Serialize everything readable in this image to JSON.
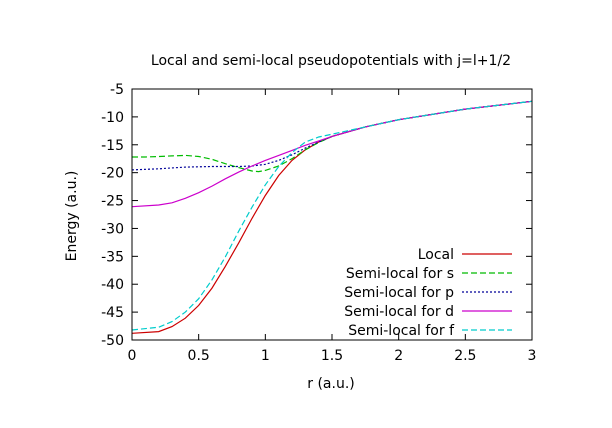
{
  "chart_data": {
    "type": "line",
    "title": "Local and semi-local pseudopotentials with j=l+1/2",
    "xlabel": "r (a.u.)",
    "ylabel": "Energy (a.u.)",
    "xlim": [
      0,
      3
    ],
    "ylim": [
      -50,
      -5
    ],
    "x_ticks": [
      0,
      0.5,
      1,
      1.5,
      2,
      2.5,
      3
    ],
    "x_tick_labels": [
      "0",
      "0.5",
      "1",
      "1.5",
      "2",
      "2.5",
      "3"
    ],
    "y_ticks": [
      -50,
      -45,
      -40,
      -35,
      -30,
      -25,
      -20,
      -15,
      -10,
      -5
    ],
    "y_tick_labels": [
      "-50",
      "-45",
      "-40",
      "-35",
      "-30",
      "-25",
      "-20",
      "-15",
      "-10",
      "-5"
    ],
    "grid": false,
    "legend_position": "bottom-right",
    "series": [
      {
        "name": "Local",
        "color": "#cc0000",
        "dash": "solid",
        "x": [
          0,
          0.2,
          0.3,
          0.4,
          0.5,
          0.6,
          0.7,
          0.8,
          0.9,
          1.0,
          1.1,
          1.2,
          1.3,
          1.4,
          1.5,
          1.75,
          2.0,
          2.5,
          3.0
        ],
        "y": [
          -48.8,
          -48.5,
          -47.6,
          -46.1,
          -43.8,
          -40.7,
          -36.8,
          -32.6,
          -28.2,
          -24.1,
          -20.5,
          -17.8,
          -15.9,
          -14.5,
          -13.5,
          -11.8,
          -10.5,
          -8.6,
          -7.2
        ]
      },
      {
        "name": "Semi-local for s",
        "color": "#00bb00",
        "dash": "dash",
        "x": [
          0,
          0.1,
          0.2,
          0.3,
          0.4,
          0.5,
          0.6,
          0.7,
          0.8,
          0.9,
          0.95,
          1.0,
          1.1,
          1.2,
          1.3,
          1.4,
          1.5,
          1.75,
          2.0,
          2.5,
          3.0
        ],
        "y": [
          -17.2,
          -17.2,
          -17.1,
          -17.0,
          -16.9,
          -17.1,
          -17.6,
          -18.4,
          -19.1,
          -19.7,
          -19.8,
          -19.6,
          -18.8,
          -17.5,
          -15.9,
          -14.6,
          -13.5,
          -11.8,
          -10.5,
          -8.6,
          -7.2
        ]
      },
      {
        "name": "Semi-local for p",
        "color": "#000099",
        "dash": "dot",
        "x": [
          0,
          0.2,
          0.4,
          0.6,
          0.8,
          0.9,
          1.0,
          1.1,
          1.2,
          1.3,
          1.4,
          1.5,
          1.75,
          2.0,
          2.5,
          3.0
        ],
        "y": [
          -19.5,
          -19.3,
          -19.0,
          -18.9,
          -18.9,
          -18.8,
          -18.5,
          -17.8,
          -16.8,
          -15.6,
          -14.5,
          -13.5,
          -11.8,
          -10.5,
          -8.6,
          -7.2
        ]
      },
      {
        "name": "Semi-local for d",
        "color": "#cc00cc",
        "dash": "solid",
        "x": [
          0,
          0.2,
          0.3,
          0.4,
          0.5,
          0.6,
          0.7,
          0.8,
          0.9,
          1.0,
          1.1,
          1.2,
          1.3,
          1.4,
          1.5,
          1.75,
          2.0,
          2.5,
          3.0
        ],
        "y": [
          -26.1,
          -25.8,
          -25.4,
          -24.6,
          -23.6,
          -22.4,
          -21.1,
          -19.9,
          -18.8,
          -17.8,
          -16.9,
          -16.0,
          -15.1,
          -14.3,
          -13.5,
          -11.8,
          -10.5,
          -8.6,
          -7.2
        ]
      },
      {
        "name": "Semi-local for f",
        "color": "#00cccc",
        "dash": "dash",
        "x": [
          0,
          0.2,
          0.3,
          0.4,
          0.5,
          0.6,
          0.7,
          0.8,
          0.9,
          1.0,
          1.1,
          1.2,
          1.3,
          1.4,
          1.5,
          1.75,
          2.0,
          2.5,
          3.0
        ],
        "y": [
          -48.2,
          -47.7,
          -46.7,
          -45.0,
          -42.6,
          -39.2,
          -35.1,
          -30.5,
          -26.2,
          -22.2,
          -18.9,
          -16.4,
          -14.5,
          -13.6,
          -13.1,
          -11.8,
          -10.5,
          -8.6,
          -7.2
        ]
      }
    ]
  }
}
